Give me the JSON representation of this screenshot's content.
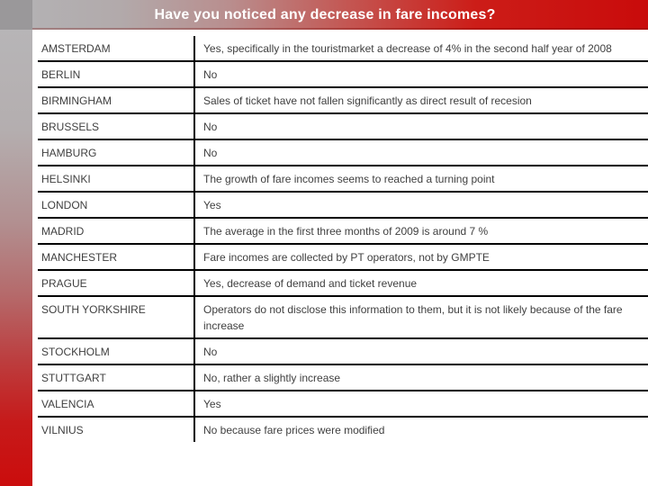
{
  "header": {
    "title": "Have you noticed any decrease in fare incomes?"
  },
  "colors": {
    "header_red": "#c90b0b",
    "header_gray": "#b3b1b3",
    "corner_gray": "#9a989a",
    "sidebar_top_gray": "#b7b5b7",
    "sidebar_bottom_red": "#cb0d0d",
    "table_border": "#000000",
    "table_text": "#3f3f3f",
    "title_text": "#ffffff",
    "background": "#ffffff"
  },
  "table": {
    "columns": [
      "city",
      "answer"
    ],
    "rows": [
      {
        "city": "AMSTERDAM",
        "answer": "Yes, specifically in the touristmarket a decrease of 4% in the second half year of 2008"
      },
      {
        "city": "BERLIN",
        "answer": "No"
      },
      {
        "city": "BIRMINGHAM",
        "answer": "Sales of ticket have not fallen significantly as direct result of recesion"
      },
      {
        "city": "BRUSSELS",
        "answer": "No"
      },
      {
        "city": "HAMBURG",
        "answer": "No"
      },
      {
        "city": "HELSINKI",
        "answer": "The growth of fare incomes seems to reached a turning point"
      },
      {
        "city": "LONDON",
        "answer": "Yes"
      },
      {
        "city": "MADRID",
        "answer": "The average in the first three months of 2009 is around 7 %"
      },
      {
        "city": "MANCHESTER",
        "answer": "Fare incomes are collected by PT operators, not by GMPTE"
      },
      {
        "city": "PRAGUE",
        "answer": "Yes, decrease of demand and ticket revenue"
      },
      {
        "city": "SOUTH YORKSHIRE",
        "answer": "Operators do not disclose this information to them, but it is not likely because of the fare increase"
      },
      {
        "city": "STOCKHOLM",
        "answer": "No"
      },
      {
        "city": "STUTTGART",
        "answer": "No, rather a slightly increase"
      },
      {
        "city": "VALENCIA",
        "answer": "Yes"
      },
      {
        "city": "VILNIUS",
        "answer": "No because fare prices were modified"
      }
    ]
  }
}
